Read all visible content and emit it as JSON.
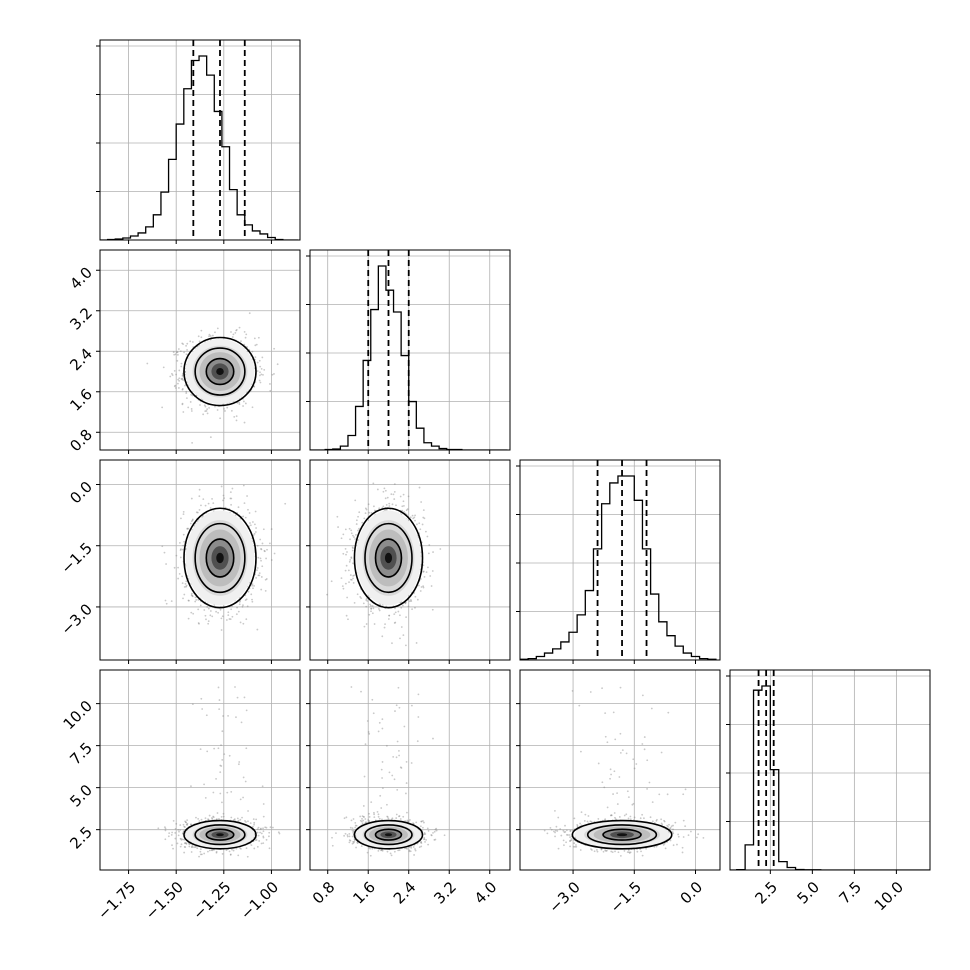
{
  "chart_data": {
    "type": "corner",
    "n_params": 4,
    "grid": true,
    "quantile_lines": "dashed",
    "title": "",
    "labels": [
      "",
      "",
      "",
      ""
    ],
    "tick_labels": {
      "x": [
        [
          "-1.75",
          "-1.50",
          "-1.25",
          "-1.00"
        ],
        [
          "0.8",
          "1.6",
          "2.4",
          "3.2",
          "4.0"
        ],
        [
          "-3.0",
          "-1.5",
          "0.0"
        ],
        [
          "2.5",
          "5.0",
          "7.5",
          "10.0"
        ]
      ],
      "y": [
        [],
        [
          "0.8",
          "1.6",
          "2.4",
          "3.2",
          "4.0"
        ],
        [
          "-3.0",
          "-1.5",
          "0.0"
        ],
        [
          "2.5",
          "5.0",
          "7.5",
          "10.0"
        ]
      ]
    },
    "params": [
      {
        "range": [
          -1.9,
          -0.85
        ],
        "ticks": [
          -1.75,
          -1.5,
          -1.25,
          -1.0
        ],
        "mean": -1.27,
        "sd": 0.09,
        "quantiles": [
          -1.41,
          -1.27,
          -1.14
        ],
        "hist_edges": [
          -1.9,
          -1.86,
          -1.82,
          -1.78,
          -1.74,
          -1.7,
          -1.66,
          -1.62,
          -1.58,
          -1.54,
          -1.5,
          -1.46,
          -1.42,
          -1.38,
          -1.34,
          -1.3,
          -1.26,
          -1.22,
          -1.18,
          -1.14,
          -1.1,
          -1.06,
          -1.02,
          -0.98,
          -0.94,
          -0.9,
          -0.86
        ],
        "hist_counts": [
          0,
          1,
          2,
          4,
          8,
          14,
          26,
          50,
          95,
          160,
          230,
          300,
          356,
          365,
          327,
          255,
          185,
          100,
          50,
          30,
          18,
          12,
          5,
          1,
          0,
          0
        ]
      },
      {
        "range": [
          0.45,
          4.4
        ],
        "ticks": [
          0.8,
          1.6,
          2.4,
          3.2,
          4.0
        ],
        "mean": 2.0,
        "sd": 0.32,
        "quantiles": [
          1.6,
          2.0,
          2.4
        ],
        "hist_edges": [
          0.45,
          0.6,
          0.75,
          0.9,
          1.05,
          1.2,
          1.35,
          1.5,
          1.65,
          1.8,
          1.95,
          2.1,
          2.25,
          2.4,
          2.55,
          2.7,
          2.85,
          3.0,
          3.15,
          3.3,
          3.45,
          3.6,
          3.75,
          3.9,
          4.05,
          4.2,
          4.35
        ],
        "hist_counts": [
          0,
          0,
          1,
          2,
          8,
          30,
          90,
          185,
          290,
          380,
          330,
          285,
          195,
          100,
          45,
          15,
          8,
          3,
          1,
          1,
          0,
          0,
          0,
          0,
          0,
          0
        ]
      },
      {
        "range": [
          -4.3,
          0.6
        ],
        "ticks": [
          -3.0,
          -1.5,
          0.0
        ],
        "mean": -1.8,
        "sd": 0.58,
        "quantiles": [
          -2.4,
          -1.8,
          -1.2
        ],
        "hist_edges": [
          -4.3,
          -4.1,
          -3.9,
          -3.7,
          -3.5,
          -3.3,
          -3.1,
          -2.9,
          -2.7,
          -2.5,
          -2.3,
          -2.1,
          -1.9,
          -1.7,
          -1.5,
          -1.3,
          -1.1,
          -0.9,
          -0.7,
          -0.5,
          -0.3,
          -0.1,
          0.1,
          0.3,
          0.5
        ],
        "hist_counts": [
          1,
          2,
          5,
          10,
          16,
          26,
          40,
          65,
          100,
          160,
          225,
          255,
          265,
          265,
          230,
          160,
          95,
          55,
          35,
          20,
          10,
          5,
          2,
          1
        ]
      },
      {
        "range": [
          0.1,
          12.0
        ],
        "ticks": [
          2.5,
          5.0,
          7.5,
          10.0
        ],
        "mean": 2.2,
        "sd": 0.4,
        "quantiles": [
          1.8,
          2.25,
          2.7
        ],
        "hist_edges": [
          0.1,
          0.5,
          1.0,
          1.5,
          2.0,
          2.5,
          3.0,
          3.5,
          4.0,
          4.5,
          5.0,
          5.5,
          6.0,
          6.5,
          7.0,
          7.5,
          8.0,
          8.5,
          9.0,
          9.5,
          10.0,
          10.5,
          11.0,
          11.5,
          12.0
        ],
        "hist_counts": [
          0,
          2,
          150,
          1075,
          1100,
          600,
          50,
          15,
          3,
          1,
          1,
          0,
          0,
          0,
          0,
          0,
          0,
          0,
          0,
          0,
          0,
          0,
          0,
          0
        ]
      }
    ]
  }
}
